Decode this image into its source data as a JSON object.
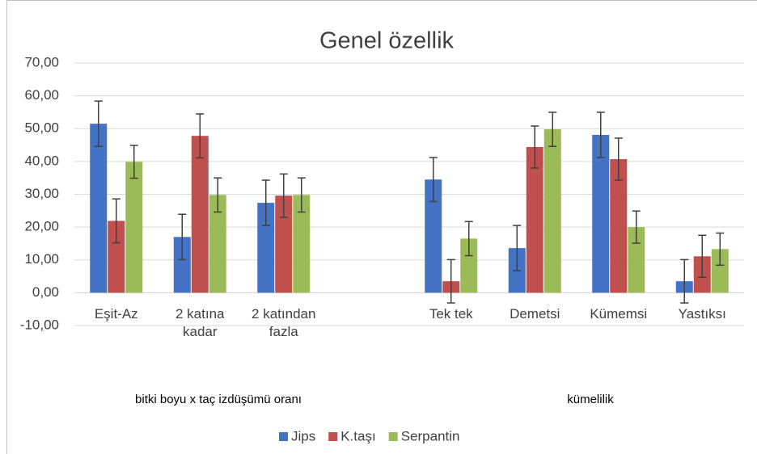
{
  "chart_data": {
    "type": "bar",
    "title": "Genel özellik",
    "categories": [
      "Eşit-Az",
      "2 katına kadar",
      "2 katından fazla",
      null,
      "Tek tek",
      "Demetsi",
      "Kümemsi",
      "Yastıksı"
    ],
    "group_labels": [
      "bitki boyu x taç izdüşümü oranı",
      "kümelilik"
    ],
    "series": [
      {
        "name": "Jips",
        "color": "#4472c4",
        "values": [
          51.5,
          17.0,
          27.4,
          null,
          34.5,
          13.6,
          48.1,
          3.5
        ],
        "errors": [
          6.9,
          6.9,
          6.9,
          null,
          6.7,
          6.9,
          6.9,
          6.6
        ]
      },
      {
        "name": "K.taşı",
        "color": "#c0504d",
        "values": [
          21.9,
          47.8,
          29.6,
          null,
          3.5,
          44.4,
          40.7,
          11.1
        ],
        "errors": [
          6.7,
          6.7,
          6.6,
          null,
          6.6,
          6.4,
          6.4,
          6.4
        ]
      },
      {
        "name": "Serpantin",
        "color": "#9bbb59",
        "values": [
          39.9,
          29.8,
          29.8,
          null,
          16.5,
          49.8,
          20.0,
          13.3
        ],
        "errors": [
          5.0,
          5.2,
          5.2,
          null,
          5.2,
          5.2,
          4.9,
          4.9
        ]
      }
    ],
    "ylim": [
      -10,
      70
    ],
    "yticks": [
      {
        "value": -10,
        "label": "-10,00"
      },
      {
        "value": 0,
        "label": "0,00"
      },
      {
        "value": 10,
        "label": "10,00"
      },
      {
        "value": 20,
        "label": "20,00"
      },
      {
        "value": 30,
        "label": "30,00"
      },
      {
        "value": 40,
        "label": "40,00"
      },
      {
        "value": 50,
        "label": "50,00"
      },
      {
        "value": 60,
        "label": "60,00"
      },
      {
        "value": 70,
        "label": "70,00"
      }
    ],
    "grid": true,
    "legend": "bottom"
  }
}
